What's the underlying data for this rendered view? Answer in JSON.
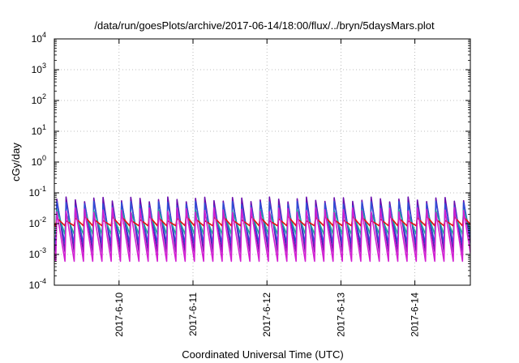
{
  "chart_data": {
    "type": "line",
    "title": "/data/run/goesPlots/archive/2017-06-14/18:00/flux/../bryn/5daysMars.plot",
    "xlabel": "Coordinated Universal Time (UTC)",
    "ylabel": "cGy/day",
    "yscale": "log",
    "ylim": [
      0.0001,
      10000
    ],
    "xlim": [
      "2017-06-09 03:00",
      "2017-06-14 18:00"
    ],
    "grid": true,
    "x_ticks": [
      "2017-6-10",
      "2017-6-11",
      "2017-6-12",
      "2017-6-13",
      "2017-6-14"
    ],
    "y_ticks": [
      {
        "value": 0.0001,
        "base": "10",
        "exp": "-4"
      },
      {
        "value": 0.001,
        "base": "10",
        "exp": "-3"
      },
      {
        "value": 0.01,
        "base": "10",
        "exp": "-2"
      },
      {
        "value": 0.1,
        "base": "10",
        "exp": "-1"
      },
      {
        "value": 1,
        "base": "10",
        "exp": "0"
      },
      {
        "value": 10,
        "base": "10",
        "exp": "1"
      },
      {
        "value": 100,
        "base": "10",
        "exp": "2"
      },
      {
        "value": 1000,
        "base": "10",
        "exp": "3"
      },
      {
        "value": 10000,
        "base": "10",
        "exp": "4"
      }
    ],
    "cycle_hours": 3,
    "series": [
      {
        "color": "#6a0dad",
        "peak": 0.062,
        "trough": 0.0012
      },
      {
        "color": "#2f4fd6",
        "peak": 0.045,
        "trough": 0.0022
      },
      {
        "color": "#1fa89a",
        "peak": 0.024,
        "trough": 0.0045
      },
      {
        "color": "#e01010",
        "peak": 0.015,
        "trough": 0.0085
      },
      {
        "color": "#d21fd2",
        "peak": 0.028,
        "trough": 0.0006
      }
    ]
  }
}
